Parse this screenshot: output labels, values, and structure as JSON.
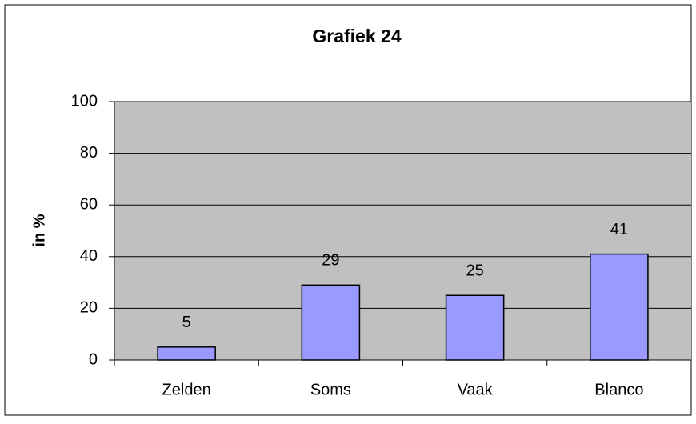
{
  "chart_data": {
    "type": "bar",
    "title": "Grafiek 24",
    "y_label": "in %",
    "categories": [
      "Zelden",
      "Soms",
      "Vaak",
      "Blanco"
    ],
    "values": [
      5,
      29,
      25,
      41
    ],
    "color": "#9999ff",
    "ylim": [
      0,
      100
    ],
    "yticks": [
      0,
      20,
      40,
      60,
      80,
      100
    ],
    "grid": true
  }
}
